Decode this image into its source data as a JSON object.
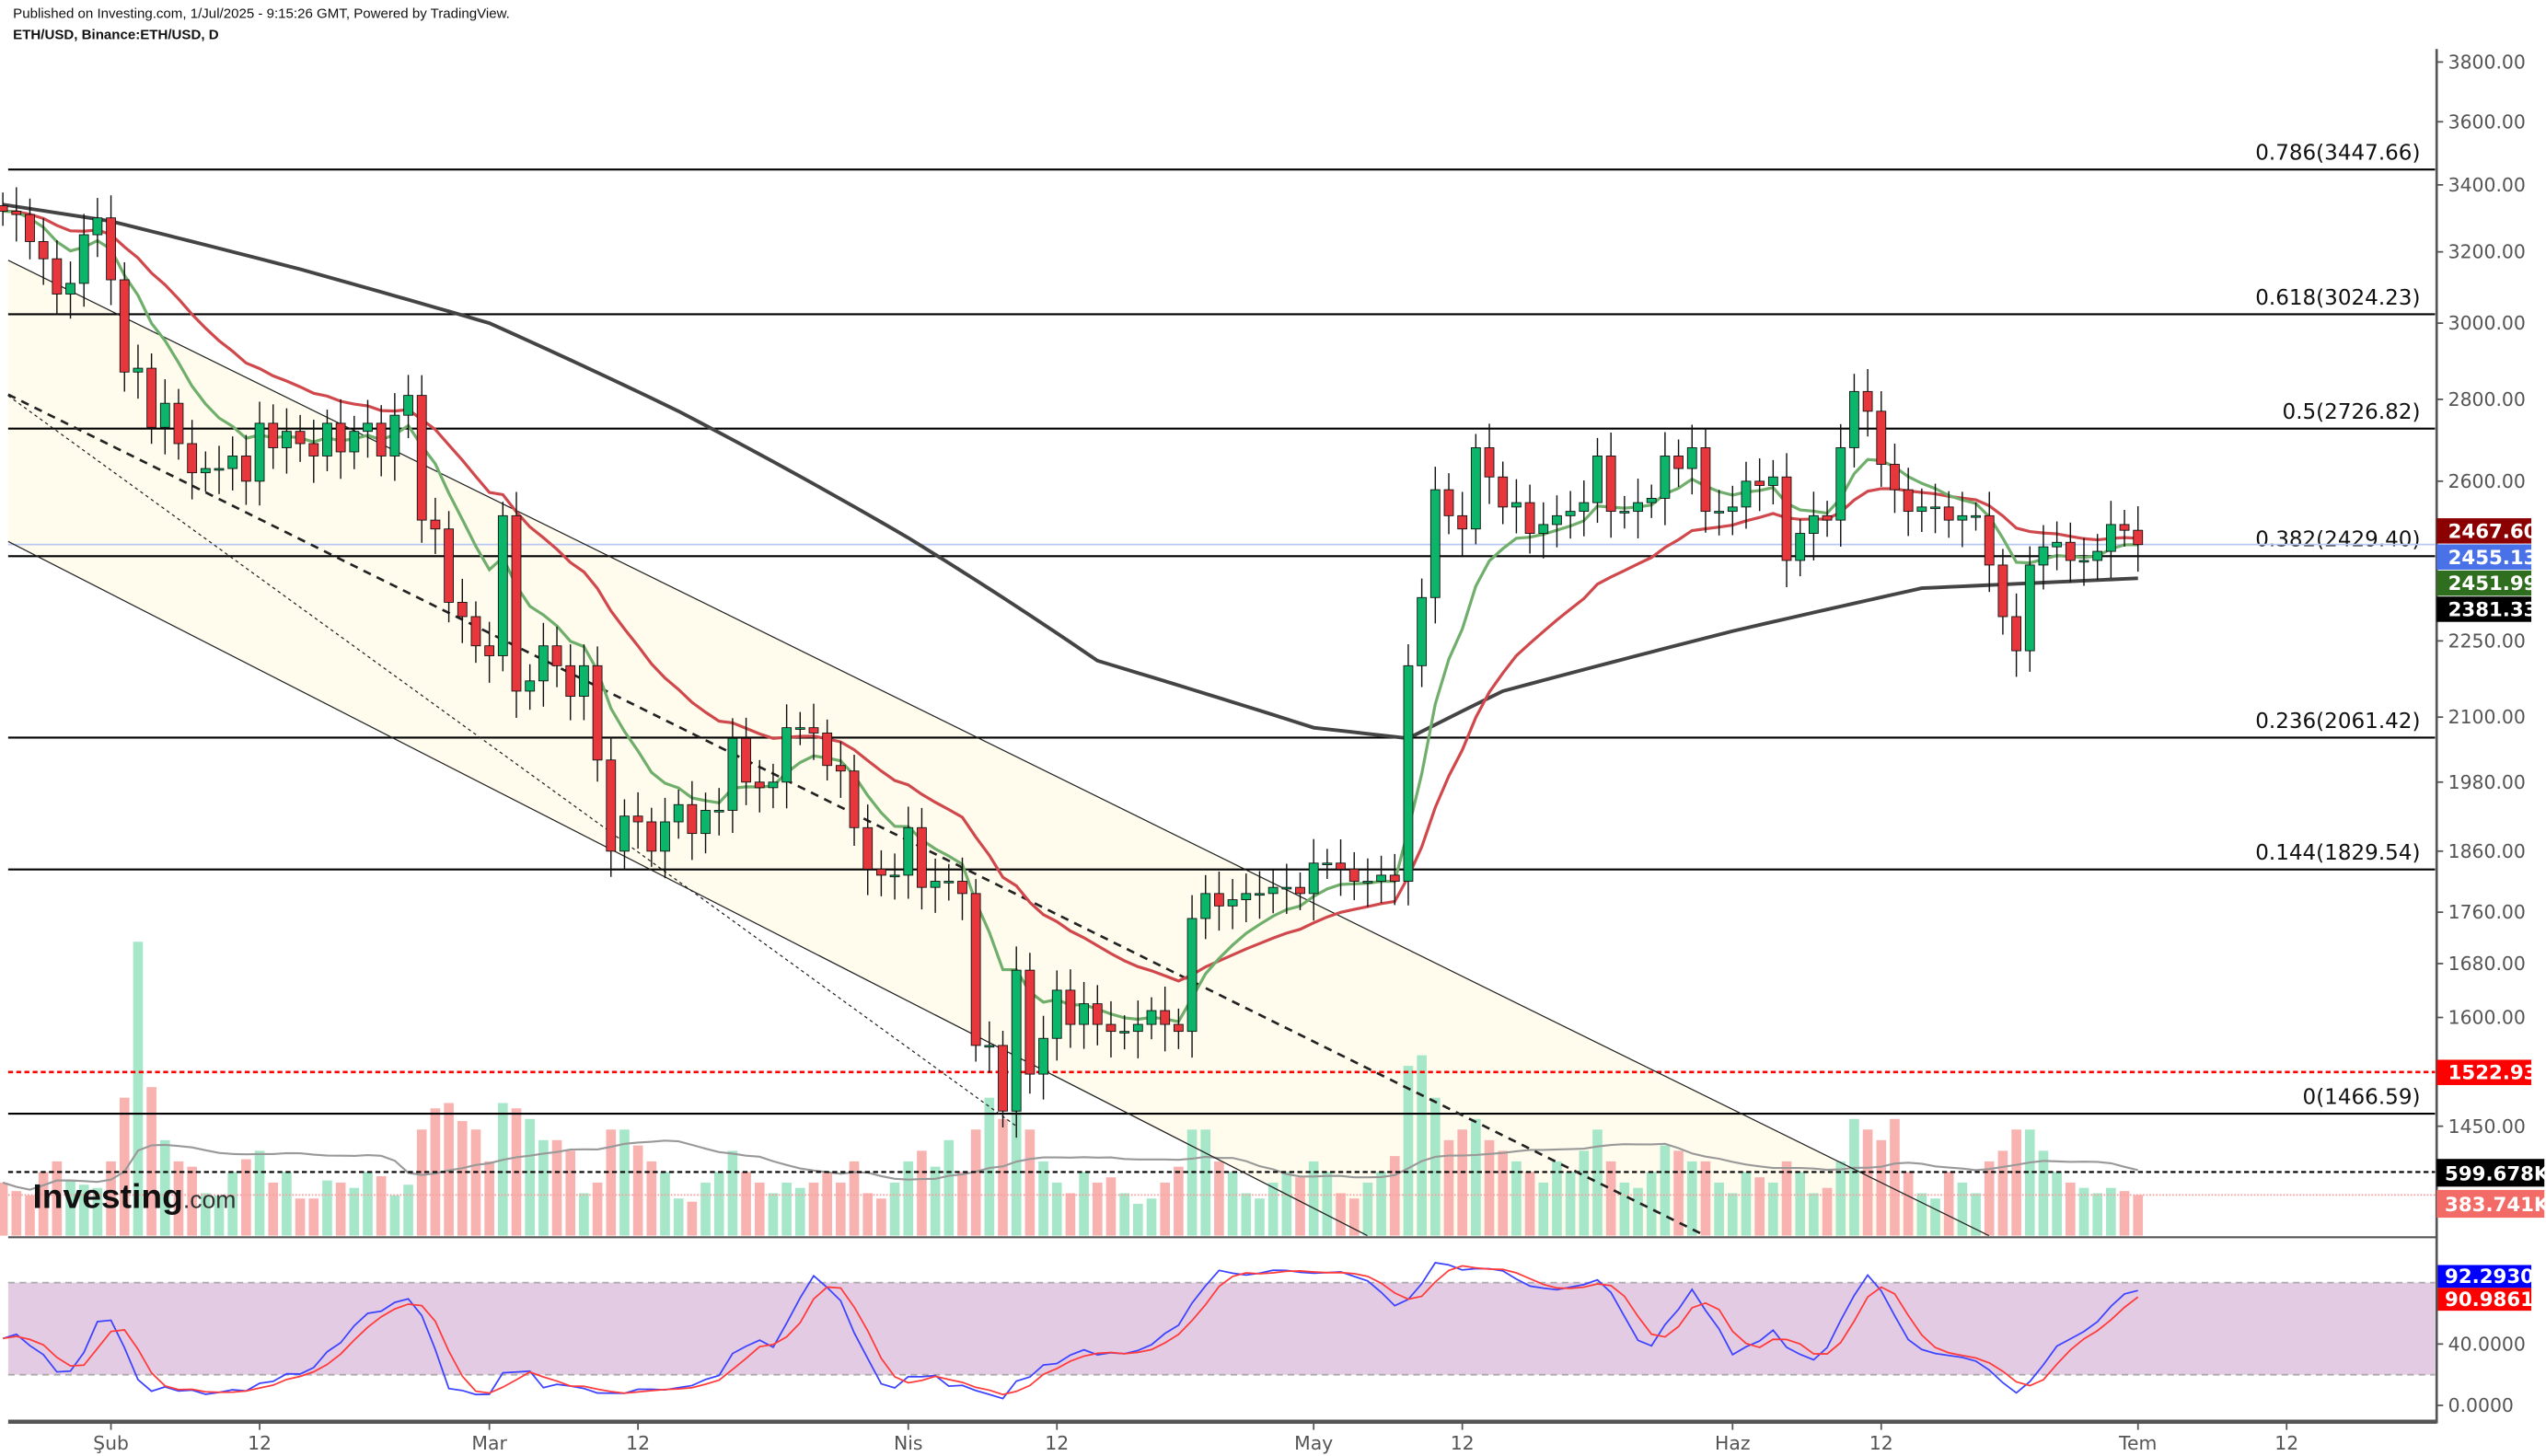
{
  "header": {
    "published": "Published on Investing.com, 1/Jul/2025 - 9:15:26 GMT, Powered by TradingView.",
    "symbol": "ETH/USD, Binance:ETH/USD, D"
  },
  "logo": {
    "text": "Investing",
    "suffix": ".com"
  },
  "colors": {
    "up": "#0bb56a",
    "down": "#e8373c",
    "up_volume": "#a6e7c9",
    "down_volume": "#f8b3b0",
    "ema_fast": "#6fae6b",
    "ema_slow": "#d0484c",
    "ma_long": "#444444",
    "channel_fill": "#fffcee",
    "stoch_k": "#3d44ff",
    "stoch_d": "#ff3b3b",
    "stoch_band": "#e4cbe4",
    "current_price_line": "#b8c8f4"
  },
  "chart_data": {
    "type": "candlestick",
    "title": "ETH/USD, Binance:ETH/USD, D",
    "y_scale": "log",
    "ylim": [
      1310,
      3900
    ],
    "price_ticks": [
      "3800.00",
      "3600.00",
      "3400.00",
      "3200.00",
      "3000.00",
      "2800.00",
      "2600.00",
      "2250.00",
      "2100.00",
      "1980.00",
      "1860.00",
      "1760.00",
      "1680.00",
      "1600.00",
      "1450.00"
    ],
    "x_ticks": [
      {
        "label": "Şub",
        "date": "2025-02-01"
      },
      {
        "label": "12",
        "date": "2025-02-12"
      },
      {
        "label": "Mar",
        "date": "2025-03-01"
      },
      {
        "label": "12",
        "date": "2025-03-12"
      },
      {
        "label": "Nis",
        "date": "2025-04-01"
      },
      {
        "label": "12",
        "date": "2025-04-12"
      },
      {
        "label": "May",
        "date": "2025-05-01"
      },
      {
        "label": "12",
        "date": "2025-05-12"
      },
      {
        "label": "Haz",
        "date": "2025-06-01"
      },
      {
        "label": "12",
        "date": "2025-06-12"
      },
      {
        "label": "Tem",
        "date": "2025-07-01"
      },
      {
        "label": "12",
        "date": "2025-07-12"
      }
    ],
    "candles": [
      {
        "month": "2025-01",
        "first_day": 24,
        "close": [
          3320,
          3310,
          3230,
          3180,
          3080,
          3110,
          3250,
          3300
        ],
        "volume_k": [
          500,
          420,
          380,
          600,
          700,
          520,
          480,
          450
        ]
      },
      {
        "month": "2025-02",
        "first_day": 1,
        "close": [
          3120,
          2870,
          2880,
          2730,
          2790,
          2690,
          2620,
          2630,
          2630,
          2660,
          2600,
          2740,
          2680,
          2720,
          2690,
          2660,
          2740,
          2670,
          2720,
          2740,
          2660,
          2760,
          2810,
          2510,
          2490,
          2330,
          2300,
          2240
        ],
        "volume_k": [
          700,
          1300,
          2770,
          1400,
          900,
          700,
          650,
          400,
          380,
          600,
          720,
          800,
          500,
          600,
          350,
          350,
          520,
          500,
          450,
          600,
          560,
          380,
          480,
          1000,
          1200,
          1250,
          1080,
          1000
        ]
      },
      {
        "month": "2025-03",
        "first_day": 1,
        "close": [
          2220,
          2520,
          2150,
          2170,
          2240,
          2200,
          2140,
          2200,
          2020,
          1860,
          1920,
          1910,
          1860,
          1910,
          1940,
          1890,
          1930,
          1930,
          2060,
          1980,
          1970,
          1980,
          2080,
          2080,
          2070,
          2010,
          2000,
          1900,
          1830,
          1820,
          1820
        ],
        "volume_k": [
          700,
          1250,
          1200,
          1100,
          900,
          900,
          800,
          400,
          500,
          1000,
          1000,
          850,
          700,
          600,
          350,
          320,
          500,
          600,
          800,
          600,
          500,
          400,
          500,
          450,
          500,
          600,
          500,
          700,
          400,
          350,
          500
        ]
      },
      {
        "month": "2025-04",
        "first_day": 1,
        "close": [
          1900,
          1800,
          1810,
          1810,
          1790,
          1560,
          1560,
          1470,
          1670,
          1520,
          1570,
          1640,
          1590,
          1620,
          1590,
          1580,
          1580,
          1590,
          1610,
          1590,
          1580,
          1750,
          1790,
          1770,
          1780,
          1790,
          1790,
          1800,
          1800,
          1790
        ],
        "volume_k": [
          700,
          800,
          650,
          900,
          600,
          1000,
          1300,
          1100,
          1500,
          1000,
          700,
          500,
          400,
          600,
          500,
          550,
          400,
          300,
          350,
          500,
          650,
          1000,
          1000,
          700,
          600,
          400,
          350,
          500,
          600,
          550
        ]
      },
      {
        "month": "2025-05",
        "first_day": 1,
        "close": [
          1840,
          1840,
          1830,
          1810,
          1810,
          1820,
          1810,
          2200,
          2340,
          2580,
          2520,
          2490,
          2680,
          2610,
          2540,
          2550,
          2480,
          2500,
          2520,
          2530,
          2550,
          2660,
          2530,
          2530,
          2550,
          2560,
          2660,
          2630,
          2680,
          2530,
          2530
        ],
        "volume_k": [
          700,
          600,
          400,
          350,
          500,
          600,
          750,
          1600,
          1700,
          1300,
          900,
          1000,
          1100,
          900,
          800,
          700,
          600,
          500,
          700,
          600,
          800,
          1000,
          700,
          500,
          450,
          600,
          850,
          800,
          700,
          700,
          500
        ]
      },
      {
        "month": "2025-06",
        "first_day": 1,
        "close": [
          2540,
          2600,
          2590,
          2610,
          2420,
          2480,
          2520,
          2510,
          2680,
          2820,
          2770,
          2640,
          2580,
          2530,
          2540,
          2540,
          2510,
          2520,
          2520,
          2410,
          2300,
          2230,
          2410,
          2450,
          2460,
          2420,
          2420,
          2440,
          2500,
          2487
        ],
        "volume_k": [
          400,
          600,
          550,
          500,
          700,
          600,
          400,
          450,
          700,
          1100,
          1000,
          900,
          1100,
          600,
          400,
          350,
          600,
          500,
          400,
          700,
          800,
          1000,
          1000,
          800,
          600,
          500,
          450,
          400,
          450,
          420
        ]
      },
      {
        "month": "2025-07",
        "first_day": 1,
        "close": [
          2455
        ],
        "volume_k": [
          383.741
        ]
      }
    ],
    "long_ma_points": [
      {
        "date": "2025-01-24",
        "value": 3340
      },
      {
        "date": "2025-02-01",
        "value": 3290
      },
      {
        "date": "2025-02-15",
        "value": 3150
      },
      {
        "date": "2025-03-01",
        "value": 3000
      },
      {
        "date": "2025-03-15",
        "value": 2770
      },
      {
        "date": "2025-04-01",
        "value": 2470
      },
      {
        "date": "2025-04-15",
        "value": 2210
      },
      {
        "date": "2025-05-01",
        "value": 2080
      },
      {
        "date": "2025-05-08",
        "value": 2060
      },
      {
        "date": "2025-05-15",
        "value": 2150
      },
      {
        "date": "2025-06-01",
        "value": 2270
      },
      {
        "date": "2025-06-15",
        "value": 2360
      },
      {
        "date": "2025-07-01",
        "value": 2381.33
      }
    ],
    "fibonacci": [
      {
        "label": "0.786(3447.66)",
        "value": 3447.66
      },
      {
        "label": "0.618(3024.23)",
        "value": 3024.23
      },
      {
        "label": "0.5(2726.82)",
        "value": 2726.82
      },
      {
        "label": "0.382(2429.40)",
        "value": 2429.4
      },
      {
        "label": "0.236(2061.42)",
        "value": 2061.42
      },
      {
        "label": "0.144(1829.54)",
        "value": 1829.54
      },
      {
        "label": "0(1466.59)",
        "value": 1466.59
      }
    ],
    "support_line": 1522.93,
    "trend_lines": [
      {
        "kind": "channel-upper",
        "style": "solid",
        "from": {
          "date": "2025-01-24",
          "value": 3183
        },
        "to": {
          "date": "2025-06-20",
          "value": 1313
        }
      },
      {
        "kind": "channel-lower",
        "style": "solid",
        "from": {
          "date": "2025-01-24",
          "value": 2468
        },
        "to": {
          "date": "2025-05-05",
          "value": 1313
        }
      },
      {
        "kind": "mid",
        "style": "dashed",
        "from": {
          "date": "2025-01-24",
          "value": 2819
        },
        "to": {
          "date": "2025-05-30",
          "value": 1313
        }
      },
      {
        "kind": "dotted",
        "style": "dotted",
        "from": {
          "date": "2025-01-24",
          "value": 2819
        },
        "to": {
          "date": "2025-04-09",
          "value": 1450
        }
      }
    ],
    "price_tags": [
      {
        "text": "2467.60",
        "value": 2467.6,
        "color": "#8b0000"
      },
      {
        "text": "2455.13",
        "value": 2455.13,
        "color": "#4a72e8"
      },
      {
        "text": "2451.99",
        "value": 2451.99,
        "color": "#2f6e1e"
      },
      {
        "text": "2381.33",
        "value": 2381.33,
        "color": "#000000"
      },
      {
        "text": "1522.93",
        "value": 1522.93,
        "color": "#ff0000"
      }
    ],
    "volume_tags": [
      {
        "text": "599.678K",
        "color": "#000000"
      },
      {
        "text": "383.741K",
        "color": "#f36b67"
      }
    ],
    "stochastic": {
      "ylim": [
        0,
        100
      ],
      "band": [
        20,
        80
      ],
      "ticks": [
        "40.0000",
        "0.0000"
      ],
      "tags": [
        {
          "text": "92.2930",
          "value": 92.293,
          "color": "#0000ff"
        },
        {
          "text": "90.9861",
          "value": 90.9861,
          "color": "#ff0000"
        }
      ]
    }
  }
}
